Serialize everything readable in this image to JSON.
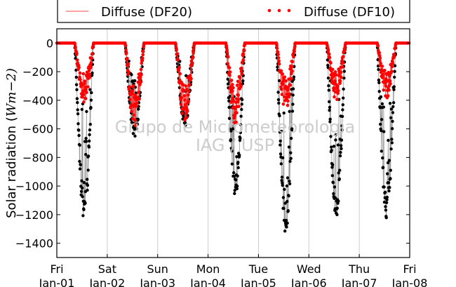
{
  "chart_data": {
    "type": "scatter",
    "ylabel": "Solar radiation ($Wm-2$)",
    "ylabel_prefix": "Solar radiation (",
    "ylabel_unit": "Wm",
    "ylabel_exp": "−2)",
    "ylim": [
      -1500,
      100
    ],
    "yticks": [
      0,
      -200,
      -400,
      -600,
      -800,
      -1000,
      -1200,
      -1400
    ],
    "xlim_days": [
      0,
      7
    ],
    "xticks": [
      {
        "day": "Fri",
        "date": "Jan-01"
      },
      {
        "day": "Sat",
        "date": "Jan-02"
      },
      {
        "day": "Sun",
        "date": "Jan-03"
      },
      {
        "day": "Mon",
        "date": "Jan-04"
      },
      {
        "day": "Tue",
        "date": "Jan-05"
      },
      {
        "day": "Wed",
        "date": "Jan-06"
      },
      {
        "day": "Thu",
        "date": "Jan-07"
      },
      {
        "day": "Fri",
        "date": "Jan-08"
      }
    ],
    "grid": "vertical",
    "legend": {
      "placement": "top",
      "entries": [
        {
          "label": "Diffuse (DF20)",
          "style": "line",
          "color": "#ff4444"
        },
        {
          "label": "Diffuse (DF10)",
          "style": "dots",
          "color": "#ff0000"
        }
      ]
    },
    "watermark": [
      "Grupo de Micrometeorologia",
      "IAG / USP"
    ],
    "series": [
      {
        "color": "#000000",
        "style": "dots-connected-gray",
        "daily_envelope": [
          {
            "date": "Jan-01",
            "min": -1230,
            "sunrise_h": 8.5,
            "sunset_h": 17.5
          },
          {
            "date": "Jan-02",
            "min": -660,
            "sunrise_h": 8.5,
            "sunset_h": 17.5
          },
          {
            "date": "Jan-03",
            "min": -580,
            "sunrise_h": 8.5,
            "sunset_h": 17.5
          },
          {
            "date": "Jan-04",
            "min": -1070,
            "sunrise_h": 8.5,
            "sunset_h": 17.5
          },
          {
            "date": "Jan-05",
            "min": -1340,
            "sunrise_h": 8.5,
            "sunset_h": 17.5
          },
          {
            "date": "Jan-06",
            "min": -1230,
            "sunrise_h": 8.5,
            "sunset_h": 17.5
          },
          {
            "date": "Jan-07",
            "min": -1230,
            "sunrise_h": 8.5,
            "sunset_h": 17.5
          }
        ]
      },
      {
        "name": "Diffuse (DF10)",
        "color": "#ff0000",
        "style": "dots",
        "daily_envelope": [
          {
            "date": "Jan-01",
            "min": -430
          },
          {
            "date": "Jan-02",
            "min": -600
          },
          {
            "date": "Jan-03",
            "min": -560
          },
          {
            "date": "Jan-04",
            "min": -570
          },
          {
            "date": "Jan-05",
            "min": -480
          },
          {
            "date": "Jan-06",
            "min": -400
          },
          {
            "date": "Jan-07",
            "min": -390
          }
        ]
      }
    ]
  }
}
